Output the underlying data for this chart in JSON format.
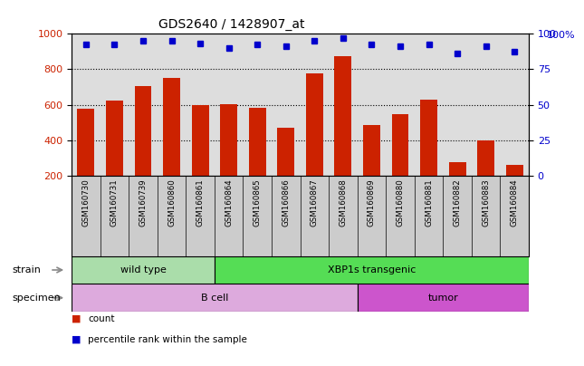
{
  "title": "GDS2640 / 1428907_at",
  "samples": [
    "GSM160730",
    "GSM160731",
    "GSM160739",
    "GSM160860",
    "GSM160861",
    "GSM160864",
    "GSM160865",
    "GSM160866",
    "GSM160867",
    "GSM160868",
    "GSM160869",
    "GSM160880",
    "GSM160881",
    "GSM160882",
    "GSM160883",
    "GSM160884"
  ],
  "counts": [
    580,
    625,
    705,
    750,
    600,
    605,
    585,
    470,
    775,
    870,
    485,
    545,
    630,
    280,
    400,
    265
  ],
  "percentiles": [
    92,
    92,
    95,
    95,
    93,
    90,
    92,
    91,
    95,
    97,
    92,
    91,
    92,
    86,
    91,
    87
  ],
  "ylim_left": [
    200,
    1000
  ],
  "ylim_right": [
    0,
    100
  ],
  "yticks_left": [
    200,
    400,
    600,
    800,
    1000
  ],
  "yticks_right": [
    0,
    25,
    50,
    75,
    100
  ],
  "bar_color": "#cc2200",
  "dot_color": "#0000cc",
  "bar_bottom": 200,
  "strain_groups": [
    {
      "label": "wild type",
      "start": 0,
      "end": 5,
      "color": "#aaddaa"
    },
    {
      "label": "XBP1s transgenic",
      "start": 5,
      "end": 16,
      "color": "#55dd55"
    }
  ],
  "specimen_groups": [
    {
      "label": "B cell",
      "start": 0,
      "end": 10,
      "color": "#ddaadd"
    },
    {
      "label": "tumor",
      "start": 10,
      "end": 16,
      "color": "#cc55cc"
    }
  ],
  "strain_label": "strain",
  "specimen_label": "specimen",
  "legend_count_label": "count",
  "legend_pct_label": "percentile rank within the sample",
  "tick_label_color_left": "#cc2200",
  "tick_label_color_right": "#0000cc",
  "plot_bg_color": "#dddddd",
  "xlabels_bg_color": "#cccccc"
}
